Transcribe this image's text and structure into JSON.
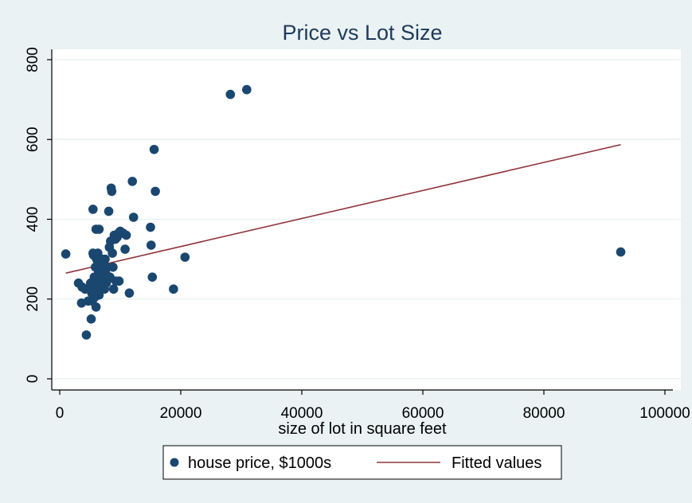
{
  "chart_data": {
    "type": "scatter",
    "title": "Price vs Lot Size",
    "xlabel": "size of lot in square feet",
    "ylabel": "",
    "xlim": [
      0,
      100000
    ],
    "ylim": [
      0,
      800
    ],
    "xticks": [
      0,
      20000,
      40000,
      60000,
      80000,
      100000
    ],
    "yticks": [
      0,
      200,
      400,
      600,
      800
    ],
    "xtick_labels": [
      "0",
      "20000",
      "40000",
      "60000",
      "80000",
      "100000"
    ],
    "ytick_labels": [
      "0",
      "200",
      "400",
      "600",
      "800"
    ],
    "grid": true,
    "legend_position": "bottom",
    "colors": {
      "background": "#eaf2f3",
      "plot_area": "#ffffff",
      "marker": "#1a476f",
      "fit_line": "#90353b",
      "title": "#1e3a5a",
      "grid": "#eaf2f3"
    },
    "series": [
      {
        "name": "house price, $1000s",
        "kind": "scatter",
        "points": [
          [
            1000,
            313
          ],
          [
            3100,
            240
          ],
          [
            3600,
            190
          ],
          [
            3700,
            230
          ],
          [
            4200,
            225
          ],
          [
            4400,
            110
          ],
          [
            4700,
            195
          ],
          [
            5000,
            230
          ],
          [
            5100,
            240
          ],
          [
            5200,
            150
          ],
          [
            5300,
            215
          ],
          [
            5400,
            195
          ],
          [
            5500,
            425
          ],
          [
            5500,
            315
          ],
          [
            5600,
            310
          ],
          [
            5700,
            255
          ],
          [
            5800,
            205
          ],
          [
            5900,
            280
          ],
          [
            6000,
            180
          ],
          [
            6000,
            375
          ],
          [
            6100,
            240
          ],
          [
            6100,
            300
          ],
          [
            6200,
            225
          ],
          [
            6300,
            290
          ],
          [
            6300,
            315
          ],
          [
            6400,
            265
          ],
          [
            6500,
            375
          ],
          [
            6500,
            210
          ],
          [
            6700,
            255
          ],
          [
            6800,
            280
          ],
          [
            6900,
            235
          ],
          [
            7000,
            300
          ],
          [
            7100,
            250
          ],
          [
            7200,
            270
          ],
          [
            7300,
            245
          ],
          [
            7400,
            225
          ],
          [
            7500,
            300
          ],
          [
            7600,
            265
          ],
          [
            7700,
            240
          ],
          [
            7800,
            280
          ],
          [
            8000,
            250
          ],
          [
            8100,
            420
          ],
          [
            8200,
            330
          ],
          [
            8300,
            255
          ],
          [
            8400,
            345
          ],
          [
            8500,
            478
          ],
          [
            8600,
            470
          ],
          [
            8700,
            315
          ],
          [
            8800,
            280
          ],
          [
            8900,
            225
          ],
          [
            9000,
            360
          ],
          [
            9200,
            350
          ],
          [
            9300,
            245
          ],
          [
            9500,
            355
          ],
          [
            9700,
            365
          ],
          [
            9800,
            245
          ],
          [
            10000,
            370
          ],
          [
            10500,
            365
          ],
          [
            10800,
            325
          ],
          [
            11000,
            360
          ],
          [
            11500,
            215
          ],
          [
            12000,
            495
          ],
          [
            12200,
            405
          ],
          [
            15000,
            380
          ],
          [
            15100,
            335
          ],
          [
            15300,
            255
          ],
          [
            15600,
            575
          ],
          [
            15800,
            470
          ],
          [
            18800,
            225
          ],
          [
            20700,
            305
          ],
          [
            28200,
            713
          ],
          [
            30900,
            725
          ],
          [
            92700,
            318
          ]
        ]
      },
      {
        "name": "Fitted values",
        "kind": "line",
        "points": [
          [
            1000,
            265
          ],
          [
            92700,
            587
          ]
        ]
      }
    ]
  }
}
